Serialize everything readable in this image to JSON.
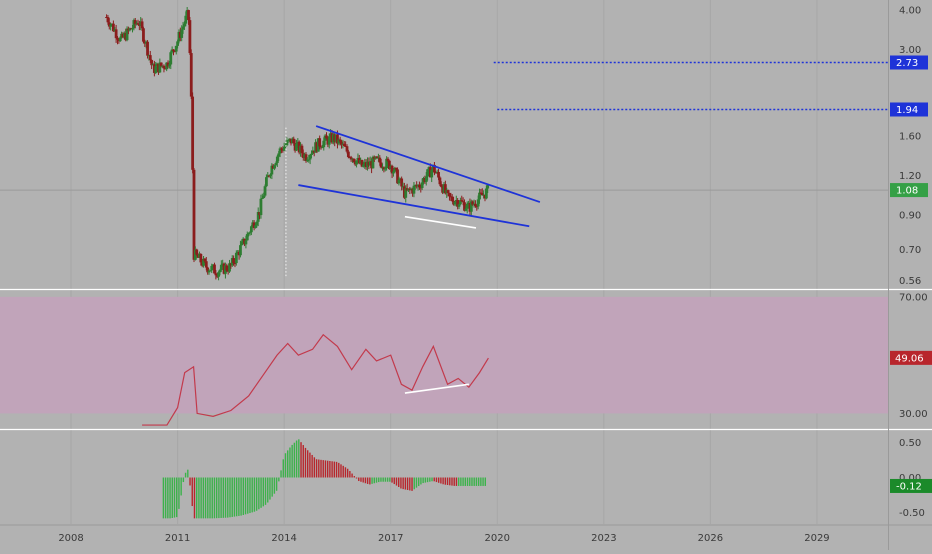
{
  "colors": {
    "background": "#b2b2b2",
    "candle_up": "#2e7d32",
    "candle_down": "#8b1d1d",
    "trendline": "#1e33d8",
    "target_label_bg": "#1e33d8",
    "price_label_bg": "#35a046",
    "rsi_line": "#c23a4c",
    "rsi_band": "#c2a3bb",
    "rsi_label_bg": "#b8262c",
    "osc_positive": "#3bb34a",
    "osc_negative": "#b8262c",
    "osc_label_bg": "#1b8a2a",
    "divergence_line": "#ffffff"
  },
  "chart_data": [
    {
      "type": "candlestick",
      "panel": "price",
      "y_scale": "log",
      "ylim": [
        0.53,
        4.3
      ],
      "y_ticks": [
        "4.00",
        "3.00",
        "1.60",
        "1.20",
        "0.90",
        "0.70",
        "0.56"
      ],
      "y_tick_values": [
        4.0,
        3.0,
        1.6,
        1.2,
        0.9,
        0.7,
        0.56
      ],
      "price_close_trace": [
        {
          "x": 2009.0,
          "y": 3.8
        },
        {
          "x": 2009.4,
          "y": 3.2
        },
        {
          "x": 2009.9,
          "y": 3.7
        },
        {
          "x": 2010.3,
          "y": 2.6
        },
        {
          "x": 2010.7,
          "y": 2.7
        },
        {
          "x": 2011.0,
          "y": 3.2
        },
        {
          "x": 2011.3,
          "y": 3.9
        },
        {
          "x": 2011.45,
          "y": 0.68
        },
        {
          "x": 2011.8,
          "y": 0.62
        },
        {
          "x": 2012.1,
          "y": 0.6
        },
        {
          "x": 2012.5,
          "y": 0.62
        },
        {
          "x": 2012.9,
          "y": 0.75
        },
        {
          "x": 2013.3,
          "y": 0.92
        },
        {
          "x": 2013.6,
          "y": 1.25
        },
        {
          "x": 2013.9,
          "y": 1.45
        },
        {
          "x": 2014.2,
          "y": 1.55
        },
        {
          "x": 2014.6,
          "y": 1.38
        },
        {
          "x": 2015.0,
          "y": 1.52
        },
        {
          "x": 2015.4,
          "y": 1.58
        },
        {
          "x": 2015.8,
          "y": 1.42
        },
        {
          "x": 2016.2,
          "y": 1.28
        },
        {
          "x": 2016.6,
          "y": 1.33
        },
        {
          "x": 2017.0,
          "y": 1.3
        },
        {
          "x": 2017.4,
          "y": 1.05
        },
        {
          "x": 2017.8,
          "y": 1.12
        },
        {
          "x": 2018.2,
          "y": 1.27
        },
        {
          "x": 2018.6,
          "y": 1.02
        },
        {
          "x": 2018.9,
          "y": 1.0
        },
        {
          "x": 2019.2,
          "y": 0.95
        },
        {
          "x": 2019.5,
          "y": 1.02
        },
        {
          "x": 2019.75,
          "y": 1.08
        }
      ],
      "wedge_upper": [
        {
          "x": 2014.9,
          "y": 1.72
        },
        {
          "x": 2021.2,
          "y": 0.99
        }
      ],
      "wedge_lower": [
        {
          "x": 2014.4,
          "y": 1.12
        },
        {
          "x": 2020.9,
          "y": 0.83
        }
      ],
      "divergence_line": [
        {
          "x": 2017.4,
          "y": 0.89
        },
        {
          "x": 2019.4,
          "y": 0.82
        }
      ],
      "target_levels": [
        {
          "value": 2.73,
          "label": "2.73",
          "from_x": 2019.9
        },
        {
          "value": 1.94,
          "label": "1.94",
          "from_x": 2020.0
        }
      ],
      "last_price": {
        "value": 1.08,
        "label": "1.08"
      }
    },
    {
      "type": "line",
      "panel": "rsi",
      "ylim": [
        25,
        72
      ],
      "y_ticks": [
        "70.00",
        "30.00"
      ],
      "y_tick_values": [
        70,
        30
      ],
      "band": [
        30,
        70
      ],
      "series": [
        {
          "points": [
            {
              "x": 2010.0,
              "y": 26
            },
            {
              "x": 2010.3,
              "y": 26
            },
            {
              "x": 2010.7,
              "y": 26
            },
            {
              "x": 2011.0,
              "y": 32
            },
            {
              "x": 2011.2,
              "y": 44
            },
            {
              "x": 2011.45,
              "y": 46
            },
            {
              "x": 2011.55,
              "y": 30
            },
            {
              "x": 2012.0,
              "y": 29
            },
            {
              "x": 2012.5,
              "y": 31
            },
            {
              "x": 2013.0,
              "y": 36
            },
            {
              "x": 2013.4,
              "y": 43
            },
            {
              "x": 2013.8,
              "y": 50
            },
            {
              "x": 2014.1,
              "y": 54
            },
            {
              "x": 2014.4,
              "y": 50
            },
            {
              "x": 2014.8,
              "y": 52
            },
            {
              "x": 2015.1,
              "y": 57
            },
            {
              "x": 2015.5,
              "y": 53
            },
            {
              "x": 2015.9,
              "y": 45
            },
            {
              "x": 2016.3,
              "y": 52
            },
            {
              "x": 2016.6,
              "y": 48
            },
            {
              "x": 2017.0,
              "y": 50
            },
            {
              "x": 2017.3,
              "y": 40
            },
            {
              "x": 2017.6,
              "y": 38
            },
            {
              "x": 2017.9,
              "y": 46
            },
            {
              "x": 2018.2,
              "y": 53
            },
            {
              "x": 2018.6,
              "y": 40
            },
            {
              "x": 2018.9,
              "y": 42
            },
            {
              "x": 2019.2,
              "y": 39
            },
            {
              "x": 2019.5,
              "y": 44
            },
            {
              "x": 2019.75,
              "y": 49
            }
          ]
        }
      ],
      "divergence_line": [
        {
          "x": 2017.4,
          "y": 37
        },
        {
          "x": 2019.2,
          "y": 40
        }
      ],
      "last_value": {
        "value": 49.06,
        "label": "49.06"
      }
    },
    {
      "type": "bar",
      "panel": "oscillator",
      "ylim": [
        -0.66,
        0.66
      ],
      "y_ticks": [
        "0.50",
        "0.00",
        "-0.50"
      ],
      "y_tick_values": [
        0.5,
        0.0,
        -0.5
      ],
      "histogram": [
        {
          "x": 2010.6,
          "y": -0.58
        },
        {
          "x": 2010.8,
          "y": -0.58
        },
        {
          "x": 2011.0,
          "y": -0.56
        },
        {
          "x": 2011.2,
          "y": 0.05
        },
        {
          "x": 2011.3,
          "y": 0.12
        },
        {
          "x": 2011.45,
          "y": -0.58
        },
        {
          "x": 2011.7,
          "y": -0.58
        },
        {
          "x": 2012.0,
          "y": -0.58
        },
        {
          "x": 2012.4,
          "y": -0.57
        },
        {
          "x": 2012.8,
          "y": -0.54
        },
        {
          "x": 2013.2,
          "y": -0.48
        },
        {
          "x": 2013.5,
          "y": -0.38
        },
        {
          "x": 2013.8,
          "y": -0.18
        },
        {
          "x": 2014.0,
          "y": 0.32
        },
        {
          "x": 2014.2,
          "y": 0.45
        },
        {
          "x": 2014.4,
          "y": 0.55
        },
        {
          "x": 2014.6,
          "y": 0.42
        },
        {
          "x": 2014.9,
          "y": 0.26
        },
        {
          "x": 2015.2,
          "y": 0.24
        },
        {
          "x": 2015.5,
          "y": 0.22
        },
        {
          "x": 2015.8,
          "y": 0.12
        },
        {
          "x": 2016.1,
          "y": -0.05
        },
        {
          "x": 2016.4,
          "y": -0.1
        },
        {
          "x": 2016.7,
          "y": -0.06
        },
        {
          "x": 2017.0,
          "y": -0.06
        },
        {
          "x": 2017.3,
          "y": -0.16
        },
        {
          "x": 2017.6,
          "y": -0.19
        },
        {
          "x": 2017.9,
          "y": -0.08
        },
        {
          "x": 2018.2,
          "y": -0.05
        },
        {
          "x": 2018.5,
          "y": -0.1
        },
        {
          "x": 2018.8,
          "y": -0.12
        },
        {
          "x": 2019.1,
          "y": -0.12
        },
        {
          "x": 2019.4,
          "y": -0.12
        },
        {
          "x": 2019.7,
          "y": -0.12
        }
      ],
      "last_value": {
        "value": -0.12,
        "label": "-0.12"
      }
    }
  ],
  "x_axis": {
    "xlim": [
      2006.0,
      2031.0
    ],
    "ticks": [
      {
        "value": 2008,
        "label": "2008"
      },
      {
        "value": 2011,
        "label": "2011"
      },
      {
        "value": 2014,
        "label": "2014"
      },
      {
        "value": 2017,
        "label": "2017"
      },
      {
        "value": 2020,
        "label": "2020"
      },
      {
        "value": 2023,
        "label": "2023"
      },
      {
        "value": 2026,
        "label": "2026"
      },
      {
        "value": 2029,
        "label": "2029"
      }
    ]
  },
  "grid": true
}
